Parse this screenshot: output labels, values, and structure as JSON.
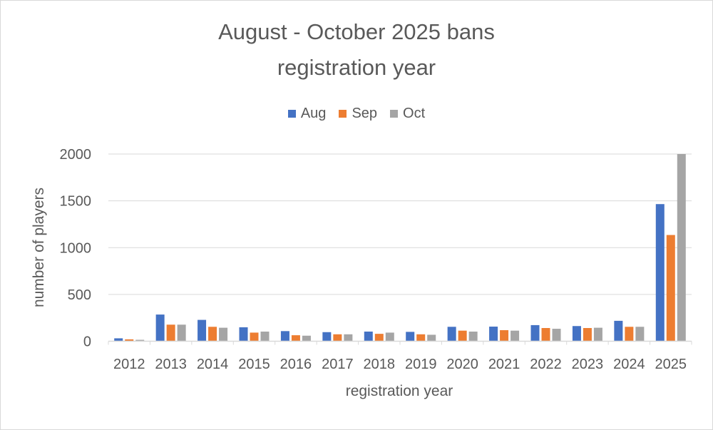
{
  "chart_data": {
    "type": "bar",
    "title": [
      "August - October 2025 bans",
      "registration year"
    ],
    "xlabel": "registration year",
    "ylabel": "number of players",
    "ylim": [
      0,
      2000
    ],
    "yticks": [
      0,
      500,
      1000,
      1500,
      2000
    ],
    "grid": true,
    "legend": "top",
    "categories": [
      "2012",
      "2013",
      "2014",
      "2015",
      "2016",
      "2017",
      "2018",
      "2019",
      "2020",
      "2021",
      "2022",
      "2023",
      "2024",
      "2025"
    ],
    "series": [
      {
        "name": "Aug",
        "color": "#4472c4",
        "values": [
          31,
          285,
          228,
          149,
          108,
          97,
          103,
          100,
          154,
          156,
          172,
          162,
          218,
          1465
        ]
      },
      {
        "name": "Sep",
        "color": "#ed7d31",
        "values": [
          20,
          177,
          154,
          92,
          64,
          74,
          79,
          74,
          113,
          118,
          141,
          141,
          154,
          1135
        ]
      },
      {
        "name": "Oct",
        "color": "#a5a5a5",
        "values": [
          15,
          177,
          144,
          103,
          59,
          74,
          92,
          69,
          103,
          113,
          133,
          144,
          154,
          2000
        ]
      }
    ]
  }
}
